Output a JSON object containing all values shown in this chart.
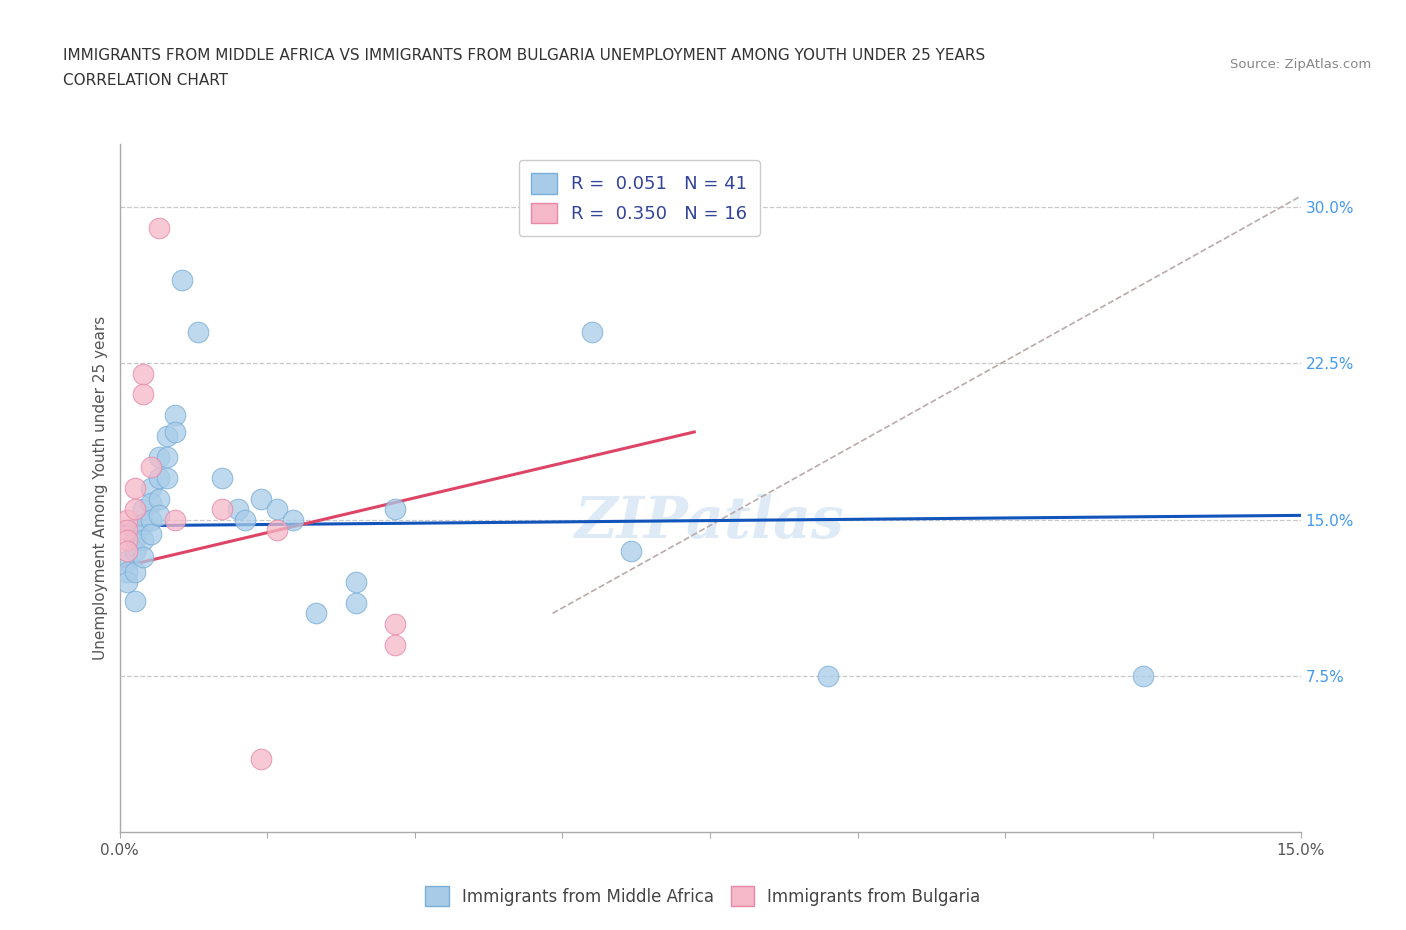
{
  "title_line1": "IMMIGRANTS FROM MIDDLE AFRICA VS IMMIGRANTS FROM BULGARIA UNEMPLOYMENT AMONG YOUTH UNDER 25 YEARS",
  "title_line2": "CORRELATION CHART",
  "source_text": "Source: ZipAtlas.com",
  "ylabel": "Unemployment Among Youth under 25 years",
  "xlim": [
    0.0,
    0.15
  ],
  "ylim": [
    0.0,
    0.33
  ],
  "ytick_vals_right": [
    0.075,
    0.15,
    0.225,
    0.3
  ],
  "ytick_labels_right": [
    "7.5%",
    "15.0%",
    "22.5%",
    "30.0%"
  ],
  "grid_color": "#c8c8c8",
  "watermark": "ZIPatlas",
  "legend_r1": "R =  0.051   N = 41",
  "legend_r2": "R =  0.350   N = 16",
  "blue_color": "#a8cce8",
  "pink_color": "#f5b8c8",
  "blue_edge_color": "#7aaed8",
  "pink_edge_color": "#e888a8",
  "trendline_blue_color": "#1155bb",
  "trendline_pink_color": "#dd4466",
  "trendline_dashed_color": "#bbaaaa",
  "blue_scatter": [
    [
      0.001,
      0.13
    ],
    [
      0.001,
      0.125
    ],
    [
      0.001,
      0.12
    ],
    [
      0.002,
      0.145
    ],
    [
      0.002,
      0.14
    ],
    [
      0.002,
      0.135
    ],
    [
      0.002,
      0.125
    ],
    [
      0.003,
      0.155
    ],
    [
      0.003,
      0.148
    ],
    [
      0.003,
      0.14
    ],
    [
      0.003,
      0.132
    ],
    [
      0.004,
      0.165
    ],
    [
      0.004,
      0.158
    ],
    [
      0.004,
      0.15
    ],
    [
      0.004,
      0.143
    ],
    [
      0.005,
      0.18
    ],
    [
      0.005,
      0.17
    ],
    [
      0.005,
      0.16
    ],
    [
      0.005,
      0.152
    ],
    [
      0.006,
      0.19
    ],
    [
      0.006,
      0.18
    ],
    [
      0.006,
      0.17
    ],
    [
      0.007,
      0.2
    ],
    [
      0.007,
      0.192
    ],
    [
      0.008,
      0.265
    ],
    [
      0.01,
      0.24
    ],
    [
      0.013,
      0.17
    ],
    [
      0.015,
      0.155
    ],
    [
      0.016,
      0.15
    ],
    [
      0.018,
      0.16
    ],
    [
      0.02,
      0.155
    ],
    [
      0.022,
      0.15
    ],
    [
      0.025,
      0.105
    ],
    [
      0.03,
      0.12
    ],
    [
      0.03,
      0.11
    ],
    [
      0.035,
      0.155
    ],
    [
      0.06,
      0.24
    ],
    [
      0.065,
      0.135
    ],
    [
      0.09,
      0.075
    ],
    [
      0.13,
      0.075
    ],
    [
      0.002,
      0.111
    ]
  ],
  "pink_scatter": [
    [
      0.001,
      0.15
    ],
    [
      0.001,
      0.145
    ],
    [
      0.001,
      0.14
    ],
    [
      0.001,
      0.135
    ],
    [
      0.002,
      0.165
    ],
    [
      0.002,
      0.155
    ],
    [
      0.003,
      0.22
    ],
    [
      0.003,
      0.21
    ],
    [
      0.004,
      0.175
    ],
    [
      0.005,
      0.29
    ],
    [
      0.007,
      0.15
    ],
    [
      0.013,
      0.155
    ],
    [
      0.02,
      0.145
    ],
    [
      0.035,
      0.1
    ],
    [
      0.035,
      0.09
    ],
    [
      0.018,
      0.035
    ]
  ],
  "blue_trend_x": [
    0.0,
    0.15
  ],
  "blue_trend_y": [
    0.147,
    0.152
  ],
  "pink_trend_x": [
    0.0,
    0.073
  ],
  "pink_trend_y": [
    0.127,
    0.192
  ],
  "diag_trend_x": [
    0.055,
    0.15
  ],
  "diag_trend_y": [
    0.105,
    0.305
  ]
}
